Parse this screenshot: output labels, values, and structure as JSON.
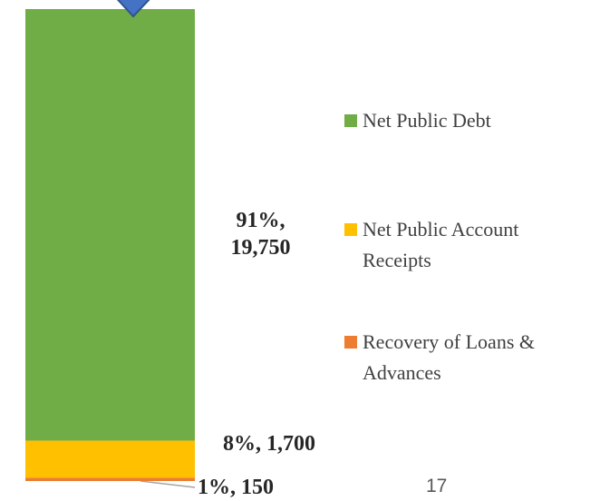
{
  "chart_data": {
    "type": "stacked_bar",
    "series": [
      {
        "name": "Recovery of Loans & Advances",
        "color": "#ed7d31",
        "values": [
          150
        ],
        "value_labels": [
          "1%, 150"
        ]
      },
      {
        "name": "Net Public Account Receipts",
        "color": "#ffc000",
        "values": [
          1700
        ],
        "value_labels": [
          "8%, 1,700"
        ]
      },
      {
        "name": "Net Public Debt",
        "color": "#70ad47",
        "values": [
          19750
        ],
        "value_labels": [
          "91%, 19,750"
        ]
      }
    ],
    "page_number": "17"
  }
}
